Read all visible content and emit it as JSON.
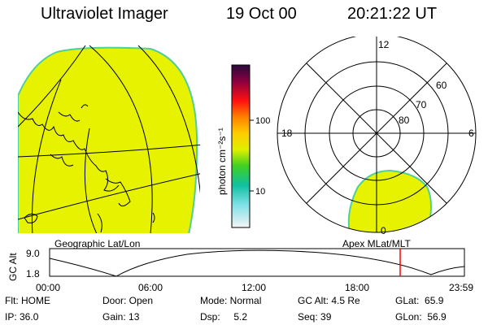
{
  "header": {
    "title": "Ultraviolet Imager",
    "date": "19 Oct 00",
    "time": "20:21:22 UT"
  },
  "colorbar": {
    "unit_label": "photon cm⁻²s⁻¹",
    "ticks": [
      "100",
      "10"
    ]
  },
  "left_map": {
    "label": "Geographic Lat/Lon",
    "fill_color": "#e6f200",
    "edge_color": "#4fcf9a"
  },
  "polar_map": {
    "label": "Apex MLat/MLT",
    "mlt_labels": [
      "12",
      "18",
      "6",
      "0"
    ],
    "lat_labels": [
      "60",
      "70",
      "80"
    ]
  },
  "altitude_plot": {
    "y_label": "GC Alt",
    "y_ticks": [
      "9.0",
      "1.8"
    ],
    "x_ticks": [
      "00:00",
      "06:00",
      "12:00",
      "18:00",
      "23:59"
    ],
    "marker_color": "#ff0000"
  },
  "status": {
    "flt": "Flt: HOME",
    "door": "Door: Open",
    "mode": "Mode: Normal",
    "gc_alt": "GC Alt: 4.5 Re",
    "glat": "GLat:  65.9",
    "ip": "IP: 36.0",
    "gain": "Gain: 13",
    "dsp": "Dsp:     5.2",
    "seq": "Seq: 39",
    "glon": "GLon:  56.9"
  }
}
